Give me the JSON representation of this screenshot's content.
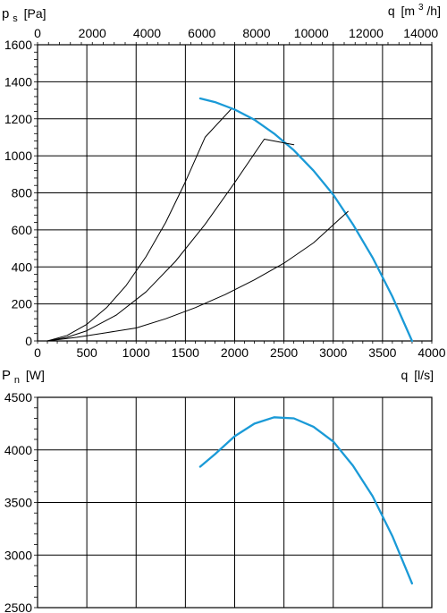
{
  "chart_data": [
    {
      "type": "line",
      "ylabel": {
        "main": "p",
        "sub": "s",
        "unit": "[Pa]"
      },
      "xlabel_bottom": {
        "main": "q",
        "unit": "[l/s]"
      },
      "xlabel_top": {
        "main": "q",
        "unit": "[m",
        "sup": "3",
        "unit_end": "/h]"
      },
      "xlim": [
        0,
        4000
      ],
      "ylim": [
        0,
        1600
      ],
      "x_ticks": [
        "0",
        "500",
        "1000",
        "1500",
        "2000",
        "2500",
        "3000",
        "3500",
        "4000"
      ],
      "y_ticks": [
        "0",
        "200",
        "400",
        "600",
        "800",
        "1000",
        "1200",
        "1400",
        "1600"
      ],
      "top_ticks": [
        "0",
        "2000",
        "4000",
        "6000",
        "8000",
        "10000",
        "12000",
        "14000"
      ],
      "grid": true,
      "series": [
        {
          "kind": "fan",
          "color": "#1a9ad7",
          "x": [
            1650,
            1800,
            2000,
            2200,
            2400,
            2600,
            2800,
            3000,
            3200,
            3400,
            3600,
            3800
          ],
          "y": [
            1310,
            1290,
            1250,
            1195,
            1120,
            1030,
            920,
            790,
            630,
            450,
            240,
            0
          ]
        },
        {
          "kind": "system",
          "color": "#000000",
          "x": [
            100,
            300,
            500,
            700,
            900,
            1100,
            1300,
            1500,
            1700,
            1960
          ],
          "y": [
            0,
            30,
            90,
            180,
            300,
            455,
            640,
            860,
            1100,
            1250
          ]
        },
        {
          "kind": "system",
          "color": "#000000",
          "x": [
            100,
            300,
            500,
            800,
            1100,
            1400,
            1700,
            2000,
            2300,
            2600
          ],
          "y": [
            0,
            20,
            55,
            140,
            265,
            430,
            630,
            855,
            1090,
            1060
          ]
        },
        {
          "kind": "system",
          "color": "#000000",
          "x": [
            100,
            400,
            700,
            1000,
            1300,
            1600,
            1900,
            2200,
            2500,
            2800,
            3150
          ],
          "y": [
            0,
            20,
            45,
            70,
            120,
            180,
            250,
            330,
            420,
            530,
            700
          ]
        }
      ]
    },
    {
      "type": "line",
      "ylabel": {
        "main": "P",
        "sub": "n",
        "unit": "[W]"
      },
      "xlim": [
        0,
        4000
      ],
      "ylim": [
        2500,
        4500
      ],
      "y_ticks": [
        "2500",
        "3000",
        "3500",
        "4000",
        "4500"
      ],
      "grid": true,
      "series": [
        {
          "kind": "power",
          "color": "#1a9ad7",
          "x": [
            1650,
            1800,
            2000,
            2200,
            2400,
            2600,
            2800,
            3000,
            3200,
            3400,
            3600,
            3800
          ],
          "y": [
            3840,
            3960,
            4130,
            4250,
            4310,
            4300,
            4220,
            4080,
            3850,
            3560,
            3180,
            2730
          ]
        }
      ]
    }
  ]
}
